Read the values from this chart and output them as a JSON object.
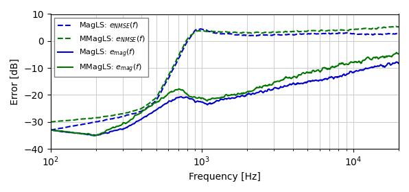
{
  "title": "",
  "xlabel": "Frequency [Hz]",
  "ylabel": "Error [dB]",
  "xlim": [
    100,
    20000
  ],
  "ylim": [
    -40,
    10
  ],
  "yticks": [
    -40,
    -30,
    -20,
    -10,
    0,
    10
  ],
  "blue": "#0000cc",
  "green": "#007700",
  "background_color": "#ffffff",
  "grid_color": "#cccccc"
}
